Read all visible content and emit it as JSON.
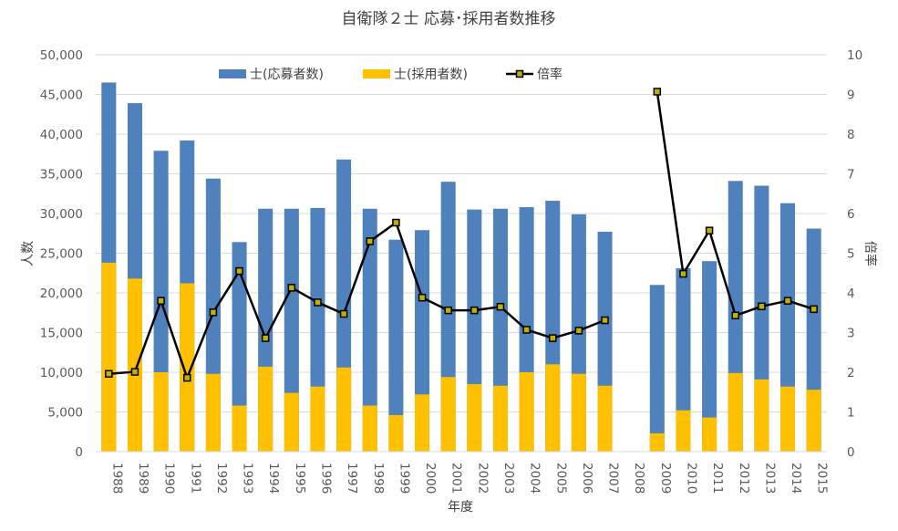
{
  "chart_data": {
    "type": "bar",
    "title": "自衛隊２士 応募･採用者数推移",
    "xlabel": "年度",
    "ylabel": "人数",
    "y2label": "倍率",
    "categories": [
      "1988",
      "1989",
      "1990",
      "1991",
      "1992",
      "1993",
      "1994",
      "1995",
      "1996",
      "1997",
      "1998",
      "1999",
      "2000",
      "2001",
      "2002",
      "2003",
      "2004",
      "2005",
      "2006",
      "2007",
      "2008",
      "2009",
      "2010",
      "2011",
      "2012",
      "2013",
      "2014",
      "2015"
    ],
    "ylim": [
      0,
      50000
    ],
    "y_ticks": [
      "0",
      "5,000",
      "10,000",
      "15,000",
      "20,000",
      "25,000",
      "30,000",
      "35,000",
      "40,000",
      "45,000",
      "50,000"
    ],
    "y2lim": [
      0,
      10
    ],
    "y2_ticks": [
      "0",
      "1",
      "2",
      "3",
      "4",
      "5",
      "6",
      "7",
      "8",
      "9",
      "10"
    ],
    "grid": true,
    "legend_position": "top",
    "series": [
      {
        "name": "士(応募者数)",
        "kind": "bar",
        "axis": "left",
        "color": "#4f81bd",
        "values": [
          46500,
          43900,
          37900,
          39200,
          34400,
          26400,
          30600,
          30600,
          30700,
          36800,
          30600,
          26700,
          27900,
          34000,
          30500,
          30600,
          30800,
          31600,
          29900,
          27700,
          null,
          21000,
          23100,
          24000,
          34100,
          33500,
          31300,
          28100
        ]
      },
      {
        "name": "士(採用者数)",
        "kind": "bar",
        "axis": "left",
        "color": "#ffc000",
        "values": [
          23800,
          21800,
          10000,
          21200,
          9800,
          5800,
          10700,
          7400,
          8200,
          10600,
          5800,
          4600,
          7200,
          9400,
          8500,
          8300,
          10000,
          11000,
          9800,
          8300,
          null,
          2300,
          5200,
          4300,
          9900,
          9100,
          8200,
          7800
        ]
      },
      {
        "name": "倍率",
        "kind": "line",
        "axis": "right",
        "color": "#000000",
        "marker_color": "#c0b000",
        "values": [
          1.96,
          2.01,
          3.8,
          1.86,
          3.51,
          4.55,
          2.86,
          4.13,
          3.76,
          3.47,
          5.3,
          5.77,
          3.88,
          3.56,
          3.56,
          3.65,
          3.07,
          2.86,
          3.05,
          3.31,
          null,
          9.07,
          4.48,
          5.57,
          3.43,
          3.66,
          3.8,
          3.59
        ]
      }
    ]
  }
}
